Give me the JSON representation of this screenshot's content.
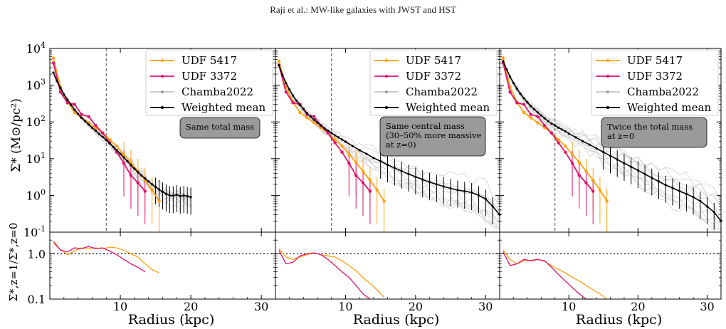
{
  "header": {
    "running_title": "Raji et al.: MW-like galaxies with JWST and HST"
  },
  "labels": {
    "ylabel_top": "Σ* (M⊙/pc²)",
    "ylabel_bottom": "Σ*,z=1/Σ*,z=0",
    "xlabel": "Radius (kpc)"
  },
  "colors": {
    "udf5417": "#ffa010",
    "udf3372": "#e0126e",
    "chamba": "#9a9a9a",
    "mean": "#000000",
    "annotation_bg": "#9a9a9a"
  },
  "legend_entries": [
    "UDF 5417",
    "UDF 3372",
    "Chamba2022",
    "Weighted mean"
  ],
  "chart_data": [
    {
      "type": "line",
      "title": "",
      "annotation": "Same total mass",
      "xlabel": "Radius (kpc)",
      "ylabel": "Σ* (M⊙/pc²)",
      "xlim": [
        0,
        32
      ],
      "ylim": [
        0.1,
        10000
      ],
      "yscale": "log",
      "xticks": [
        10,
        20,
        30
      ],
      "yticks": [
        "10^-1",
        "10^0",
        "10^1",
        "10^2",
        "10^3",
        "10^4"
      ],
      "vline_x": 8,
      "legend": "top-right",
      "series": [
        {
          "name": "UDF 5417",
          "x": [
            0.5,
            1.5,
            2.5,
            3.5,
            4.5,
            5.5,
            6.5,
            7.5,
            8.5,
            9.5,
            10.5,
            11.5,
            12.5,
            13.5,
            14.5,
            15.5
          ],
          "y": [
            5500,
            900,
            350,
            180,
            130,
            95,
            70,
            50,
            33,
            22,
            13,
            8,
            4.5,
            2.6,
            1.4,
            0.7
          ]
        },
        {
          "name": "UDF 3372",
          "x": [
            0.5,
            1.5,
            2.5,
            3.5,
            4.5,
            5.5,
            6.5,
            7.5,
            8.5,
            9.5,
            10.5,
            11.5,
            12.5,
            13.5
          ],
          "y": [
            4000,
            650,
            330,
            300,
            160,
            140,
            80,
            50,
            27,
            15,
            7.5,
            3.5,
            2.2,
            1.3
          ]
        },
        {
          "name": "Weighted mean",
          "x": [
            0.5,
            1,
            1.5,
            2,
            2.5,
            3,
            3.5,
            4,
            4.5,
            5,
            5.5,
            6,
            6.5,
            7,
            7.5,
            8,
            8.5,
            9,
            9.5,
            10,
            10.5,
            11,
            11.5,
            12,
            12.5,
            13,
            13.5,
            14,
            14.5,
            15,
            15.5,
            16,
            16.5,
            17,
            17.5,
            18,
            18.5,
            19,
            19.5,
            20
          ],
          "y": [
            2200,
            1300,
            850,
            560,
            400,
            290,
            215,
            165,
            130,
            105,
            85,
            70,
            58,
            47,
            39,
            32,
            26,
            21,
            17,
            13.5,
            10.8,
            8.5,
            6.7,
            5.3,
            4.3,
            3.5,
            2.9,
            2.4,
            2.0,
            1.7,
            1.45,
            1.25,
            1.1,
            1.0,
            0.98,
            1.05,
            0.95,
            1.0,
            0.95,
            0.9
          ]
        }
      ],
      "ratio_panel": {
        "ylim": [
          0.1,
          3
        ],
        "yscale": "log",
        "yticks": [
          "0.1",
          "1.0"
        ],
        "reference_line": 1.0,
        "series": [
          {
            "name": "UDF 5417",
            "x": [
              0.5,
              1.5,
              2.5,
              3.5,
              4.5,
              5.5,
              6.5,
              7.5,
              8.5,
              9.5,
              10.5,
              11.5,
              12.5,
              13.5,
              14.5,
              15.5
            ],
            "y": [
              1.7,
              1.25,
              0.95,
              1.15,
              1.35,
              1.3,
              1.35,
              1.3,
              1.4,
              1.35,
              1.2,
              1.0,
              0.85,
              0.6,
              0.45,
              0.38
            ]
          },
          {
            "name": "UDF 3372",
            "x": [
              0.5,
              1.5,
              2.5,
              3.5,
              4.5,
              5.5,
              6.5,
              7.5,
              8.5,
              9.5,
              10.5,
              11.5,
              12.5,
              13.5
            ],
            "y": [
              1.9,
              1.2,
              1.1,
              1.35,
              1.3,
              1.45,
              1.3,
              1.35,
              1.15,
              0.95,
              0.75,
              0.6,
              0.5,
              0.4
            ]
          }
        ]
      }
    },
    {
      "type": "line",
      "title": "",
      "annotation": "Same central mass\n(30–50% more massive\n at z=0)",
      "xlabel": "Radius (kpc)",
      "xlim": [
        0,
        32
      ],
      "ylim": [
        0.1,
        10000
      ],
      "yscale": "log",
      "xticks": [
        10,
        20,
        30
      ],
      "vline_x": 8,
      "legend": "top-right",
      "series": [
        {
          "name": "UDF 5417",
          "x": [
            0.5,
            1.5,
            2.5,
            3.5,
            4.5,
            5.5,
            6.5,
            7.5,
            8.5,
            9.5,
            10.5,
            11.5,
            12.5,
            13.5,
            14.5,
            15.5
          ],
          "y": [
            4500,
            900,
            350,
            180,
            130,
            95,
            70,
            50,
            33,
            22,
            13,
            8,
            4.5,
            2.6,
            1.4,
            0.7
          ]
        },
        {
          "name": "UDF 3372",
          "x": [
            0.5,
            1.5,
            2.5,
            3.5,
            4.5,
            5.5,
            6.5,
            7.5,
            8.5,
            9.5,
            10.5,
            11.5,
            12.5,
            13.5
          ],
          "y": [
            3500,
            650,
            330,
            300,
            160,
            140,
            80,
            50,
            27,
            15,
            7.5,
            3.5,
            2.2,
            1.3
          ]
        },
        {
          "name": "Weighted mean",
          "x": [
            0.5,
            1,
            1.5,
            2,
            2.5,
            3,
            3.5,
            4,
            4.5,
            5,
            5.5,
            6,
            6.5,
            7,
            7.5,
            8,
            8.5,
            9,
            9.5,
            10,
            11,
            12,
            13,
            14,
            15,
            16,
            17,
            18,
            19,
            20,
            21,
            22,
            23,
            24,
            25,
            26,
            27,
            28,
            29,
            30,
            31,
            32
          ],
          "y": [
            3500,
            1900,
            1150,
            760,
            520,
            380,
            290,
            225,
            175,
            140,
            115,
            95,
            80,
            67,
            58,
            50,
            43,
            38,
            33,
            29,
            22,
            17,
            13.5,
            10.5,
            8.5,
            6.8,
            5.6,
            4.6,
            3.8,
            3.2,
            2.7,
            2.3,
            2.0,
            1.75,
            1.55,
            1.4,
            1.3,
            1.2,
            1.0,
            0.8,
            0.5,
            0.3
          ]
        }
      ],
      "ratio_panel": {
        "ylim": [
          0.1,
          3
        ],
        "yscale": "log",
        "yticks": [],
        "reference_line": 1.0,
        "series": [
          {
            "name": "UDF 5417",
            "x": [
              0.5,
              1.5,
              2.5,
              3.5,
              4.5,
              5.5,
              6.5,
              7.5,
              8.5,
              9.5,
              10.5,
              11.5,
              12.5,
              13.5,
              14.5,
              15.5
            ],
            "y": [
              1.3,
              0.85,
              0.75,
              0.85,
              0.95,
              1.05,
              0.95,
              0.9,
              0.85,
              0.7,
              0.55,
              0.42,
              0.3,
              0.22,
              0.16,
              0.11
            ]
          },
          {
            "name": "UDF 3372",
            "x": [
              0.5,
              1.5,
              2.5,
              3.5,
              4.5,
              5.5,
              6.5,
              7.5,
              8.5,
              9.5,
              10.5,
              11.5,
              12.5,
              13.5
            ],
            "y": [
              1.2,
              0.6,
              0.65,
              0.9,
              1.0,
              1.05,
              0.95,
              0.75,
              0.55,
              0.4,
              0.3,
              0.2,
              0.13,
              0.09
            ]
          }
        ]
      }
    },
    {
      "type": "line",
      "title": "",
      "annotation": "Twice the total mass\n at z=0",
      "xlabel": "Radius (kpc)",
      "xlim": [
        0,
        32
      ],
      "ylim": [
        0.1,
        10000
      ],
      "yscale": "log",
      "xticks": [
        10,
        20,
        30
      ],
      "vline_x": 8,
      "legend": "top-right",
      "series": [
        {
          "name": "UDF 5417",
          "x": [
            0.5,
            1.5,
            2.5,
            3.5,
            4.5,
            5.5,
            6.5,
            7.5,
            8.5,
            9.5,
            10.5,
            11.5,
            12.5,
            13.5,
            14.5,
            15.5
          ],
          "y": [
            5500,
            900,
            350,
            180,
            130,
            95,
            70,
            50,
            33,
            22,
            13,
            8,
            4.5,
            2.6,
            1.4,
            0.7
          ]
        },
        {
          "name": "UDF 3372",
          "x": [
            0.5,
            1.5,
            2.5,
            3.5,
            4.5,
            5.5,
            6.5,
            7.5,
            8.5,
            9.5,
            10.5,
            11.5,
            12.5,
            13.5
          ],
          "y": [
            4000,
            650,
            330,
            300,
            160,
            140,
            80,
            50,
            27,
            15,
            7.5,
            3.5,
            2.2,
            1.3
          ]
        },
        {
          "name": "Weighted mean",
          "x": [
            0.5,
            1,
            1.5,
            2,
            2.5,
            3,
            3.5,
            4,
            4.5,
            5,
            5.5,
            6,
            6.5,
            7,
            7.5,
            8,
            8.5,
            9,
            9.5,
            10,
            11,
            12,
            13,
            14,
            15,
            16,
            17,
            18,
            19,
            20,
            21,
            22,
            23,
            24,
            25,
            26,
            27,
            28,
            29,
            30,
            31,
            32
          ],
          "y": [
            4500,
            2700,
            1700,
            1150,
            800,
            580,
            440,
            340,
            270,
            220,
            180,
            150,
            125,
            105,
            90,
            80,
            70,
            62,
            55,
            48,
            38,
            30,
            24,
            19,
            15,
            12,
            9.5,
            7.5,
            6,
            4.8,
            3.8,
            3.0,
            2.4,
            1.9,
            1.6,
            1.3,
            1.1,
            0.9,
            0.7,
            0.5,
            0.35,
            0.2
          ]
        }
      ],
      "ratio_panel": {
        "ylim": [
          0.1,
          3
        ],
        "yscale": "log",
        "yticks": [],
        "reference_line": 1.0,
        "series": [
          {
            "name": "UDF 5417",
            "x": [
              0.5,
              1.5,
              2.5,
              3.5,
              4.5,
              5.5,
              6.5,
              7.5,
              8.5,
              9.5,
              10.5,
              11.5,
              12.5,
              13.5,
              14.5,
              15.5
            ],
            "y": [
              1.2,
              0.75,
              0.6,
              0.7,
              0.72,
              0.75,
              0.68,
              0.55,
              0.45,
              0.38,
              0.3,
              0.25,
              0.2,
              0.16,
              0.13,
              0.1
            ]
          },
          {
            "name": "UDF 3372",
            "x": [
              0.5,
              1.5,
              2.5,
              3.5,
              4.5,
              5.5,
              6.5,
              7.5,
              8.5,
              9.5,
              10.5,
              11.5,
              12.5,
              13.5
            ],
            "y": [
              1.1,
              0.55,
              0.6,
              0.75,
              0.7,
              0.75,
              0.7,
              0.5,
              0.35,
              0.25,
              0.18,
              0.13,
              0.1,
              0.08
            ]
          }
        ]
      }
    }
  ]
}
